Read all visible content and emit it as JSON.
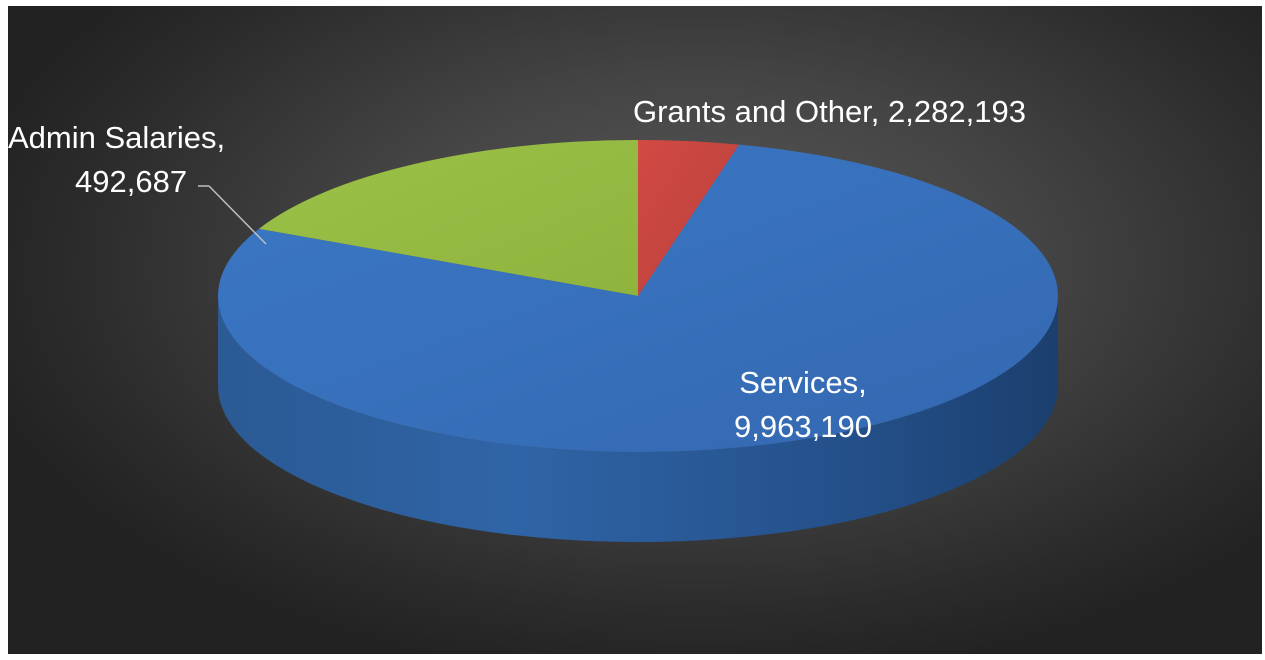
{
  "chart_data": {
    "type": "pie",
    "style": "3d",
    "slices": [
      {
        "name": "Grants and Other",
        "value": 2282193,
        "color": "#9bbb59"
      },
      {
        "name": "Admin Salaries",
        "value": 492687,
        "color": "#c0504d"
      },
      {
        "name": "Services",
        "value": 9963190,
        "color": "#3f7ecd"
      }
    ],
    "labels": {
      "grants_line": "Grants and Other,  2,282,193",
      "admin_line1": "Admin Salaries,",
      "admin_line2": "492,687",
      "services_line1": "Services,",
      "services_line2": "9,963,190"
    }
  }
}
